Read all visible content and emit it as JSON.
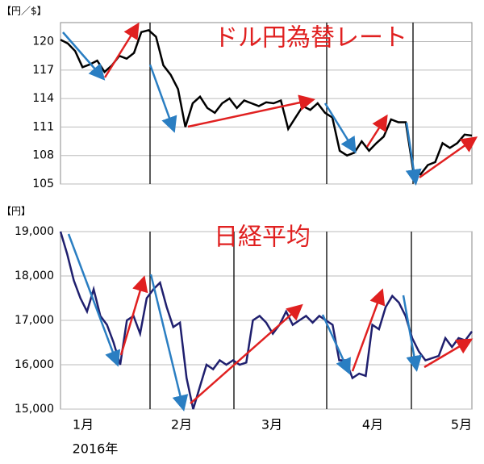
{
  "chart_data": [
    {
      "type": "line",
      "title": "ドル円為替レート",
      "y_label": "【円／$】",
      "ylim": [
        105,
        122
      ],
      "yticks": [
        105,
        108,
        111,
        114,
        117,
        120
      ],
      "grid": true,
      "series": [
        {
          "color": "#000000",
          "values": [
            120.2,
            119.8,
            119.0,
            117.3,
            117.6,
            118.0,
            116.8,
            117.5,
            118.5,
            118.2,
            118.8,
            121.0,
            121.2,
            120.5,
            117.5,
            116.5,
            115.0,
            111.0,
            113.5,
            114.2,
            113.0,
            112.5,
            113.5,
            114.0,
            113.0,
            113.8,
            113.5,
            113.2,
            113.6,
            113.5,
            113.8,
            110.8,
            112.0,
            113.2,
            112.8,
            113.5,
            112.5,
            112.0,
            108.5,
            108.0,
            108.3,
            109.5,
            108.5,
            109.3,
            110.0,
            111.8,
            111.5,
            111.5,
            106.5,
            106.0,
            107.0,
            107.3,
            109.3,
            108.8,
            109.3,
            110.2,
            110.1
          ]
        }
      ]
    },
    {
      "type": "line",
      "title": "日経平均",
      "y_label": "【円】",
      "ylim": [
        15000,
        19000
      ],
      "yticks": [
        {
          "value": 15000,
          "label": "15,000"
        },
        {
          "value": 16000,
          "label": "16,000"
        },
        {
          "value": 17000,
          "label": "17,000"
        },
        {
          "value": 18000,
          "label": "18,000"
        },
        {
          "value": 19000,
          "label": "19,000"
        }
      ],
      "grid": true,
      "x_labels": [
        "1月",
        "2月",
        "3月",
        "4月",
        "5月"
      ],
      "x_title": "2016年",
      "series": [
        {
          "color": "#1f1f6e",
          "values": [
            19000,
            18500,
            17900,
            17500,
            17200,
            17700,
            17100,
            16900,
            16500,
            16000,
            17000,
            17100,
            16700,
            17500,
            17700,
            17850,
            17300,
            16850,
            16950,
            15700,
            15000,
            15500,
            16000,
            15900,
            16100,
            16000,
            16100,
            16000,
            16050,
            17000,
            17100,
            16950,
            16700,
            16900,
            17200,
            16900,
            17000,
            17100,
            16950,
            17100,
            17000,
            16900,
            16100,
            16100,
            15700,
            15800,
            15750,
            16900,
            16800,
            17300,
            17550,
            17400,
            17100,
            16600,
            16300,
            16100,
            16150,
            16200,
            16600,
            16400,
            16600,
            16550,
            16750
          ]
        }
      ]
    }
  ]
}
